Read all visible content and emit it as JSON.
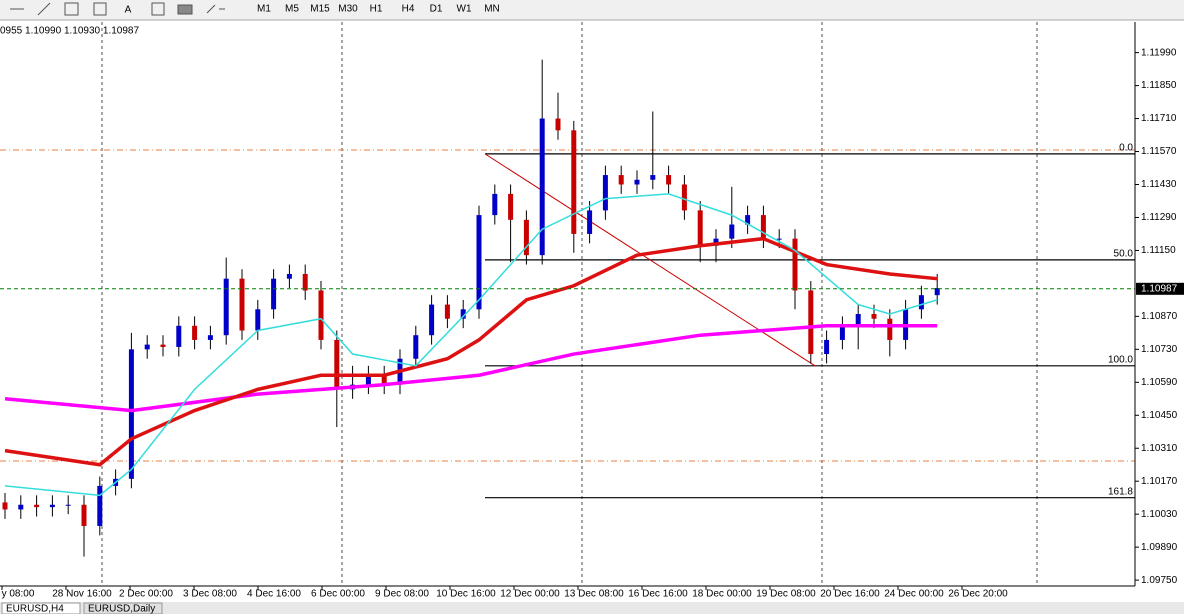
{
  "toolbar": {
    "timeframes": [
      "M1",
      "M5",
      "M15",
      "M30",
      "H1",
      "H4",
      "D1",
      "W1",
      "MN"
    ]
  },
  "chart": {
    "info": "0955 1.10990 1.10930 1.10987",
    "ylim": [
      1.09725,
      1.1212
    ],
    "price_ticks": [
      {
        "value": 1.1199,
        "label": "1.11990"
      },
      {
        "value": 1.1185,
        "label": "1.11850"
      },
      {
        "value": 1.1171,
        "label": "1.11710"
      },
      {
        "value": 1.1157,
        "label": "1.11570"
      },
      {
        "value": 1.1143,
        "label": "1.11430"
      },
      {
        "value": 1.1129,
        "label": "1.11290"
      },
      {
        "value": 1.1115,
        "label": "1.11150"
      },
      {
        "value": 1.1087,
        "label": "1.10870"
      },
      {
        "value": 1.1073,
        "label": "1.10730"
      },
      {
        "value": 1.1059,
        "label": "1.10590"
      },
      {
        "value": 1.1045,
        "label": "1.10450"
      },
      {
        "value": 1.1031,
        "label": "1.10310"
      },
      {
        "value": 1.1017,
        "label": "1.10170"
      },
      {
        "value": 1.1003,
        "label": "1.10030"
      },
      {
        "value": 1.0989,
        "label": "1.09890"
      },
      {
        "value": 1.0975,
        "label": "1.09750"
      }
    ],
    "time_labels": [
      "y 08:00",
      "28 Nov 16:00",
      "2 Dec 00:00",
      "3 Dec 08:00",
      "4 Dec 16:00",
      "6 Dec 00:00",
      "9 Dec 08:00",
      "10 Dec 16:00",
      "12 Dec 00:00",
      "13 Dec 08:00",
      "16 Dec 16:00",
      "18 Dec 00:00",
      "19 Dec 08:00",
      "20 Dec 16:00",
      "24 Dec 00:00",
      "26 Dec 20:00"
    ],
    "candles": {
      "open": [
        1.1008,
        1.1005,
        1.1007,
        1.1006,
        1.1007,
        1.1007,
        1.0998,
        1.1015,
        1.1018,
        1.1073,
        1.1075,
        1.1074,
        1.1083,
        1.1077,
        1.1079,
        1.1103,
        1.1081,
        1.109,
        1.1103,
        1.1105,
        1.1098,
        1.1077,
        1.1056,
        1.1058,
        1.1062,
        1.1058,
        1.1069,
        1.1079,
        1.1092,
        1.1086,
        1.109,
        1.113,
        1.1139,
        1.1128,
        1.1113,
        1.1171,
        1.1166,
        1.1122,
        1.1132,
        1.1147,
        1.1143,
        1.1145,
        1.1147,
        1.1143,
        1.1132,
        1.1117,
        1.112,
        1.1126,
        1.113,
        1.112,
        1.112,
        1.1098,
        1.1071,
        1.1077,
        1.1083,
        1.1088,
        1.1086,
        1.1077,
        1.109,
        1.1096
      ],
      "high": [
        1.1012,
        1.1011,
        1.1011,
        1.1011,
        1.1011,
        1.1011,
        1.1019,
        1.1022,
        1.108,
        1.1079,
        1.1079,
        1.1087,
        1.1087,
        1.1083,
        1.1112,
        1.1107,
        1.1094,
        1.1107,
        1.1109,
        1.1109,
        1.1102,
        1.1081,
        1.1066,
        1.1066,
        1.1066,
        1.1073,
        1.1083,
        1.1096,
        1.1096,
        1.1094,
        1.1134,
        1.1143,
        1.1143,
        1.1132,
        1.1196,
        1.1182,
        1.117,
        1.1136,
        1.1151,
        1.1151,
        1.1149,
        1.1174,
        1.1151,
        1.1147,
        1.1136,
        1.1124,
        1.1142,
        1.1134,
        1.1134,
        1.1124,
        1.1124,
        1.1102,
        1.1081,
        1.1087,
        1.1092,
        1.1092,
        1.109,
        1.1094,
        1.11,
        1.1105
      ],
      "low": [
        1.1001,
        1.1001,
        1.1002,
        1.1002,
        1.1003,
        1.0985,
        1.0994,
        1.1011,
        1.1014,
        1.1069,
        1.107,
        1.107,
        1.1073,
        1.1073,
        1.1075,
        1.1077,
        1.1077,
        1.1086,
        1.1099,
        1.1094,
        1.1073,
        1.104,
        1.1052,
        1.1054,
        1.1054,
        1.1054,
        1.1065,
        1.1075,
        1.1082,
        1.1082,
        1.1086,
        1.1126,
        1.111,
        1.1109,
        1.1109,
        1.1162,
        1.1114,
        1.1118,
        1.1128,
        1.1139,
        1.1139,
        1.1141,
        1.1139,
        1.1128,
        1.111,
        1.111,
        1.1116,
        1.1122,
        1.1116,
        1.1116,
        1.109,
        1.1067,
        1.1067,
        1.1073,
        1.1073,
        1.1082,
        1.107,
        1.1073,
        1.1086,
        1.1092
      ],
      "close": [
        1.1005,
        1.1007,
        1.1006,
        1.1007,
        1.1007,
        1.0998,
        1.1015,
        1.1018,
        1.1073,
        1.1075,
        1.1074,
        1.1083,
        1.1077,
        1.1079,
        1.1103,
        1.1081,
        1.109,
        1.1103,
        1.1105,
        1.1098,
        1.1077,
        1.1056,
        1.1058,
        1.1062,
        1.1058,
        1.1069,
        1.1079,
        1.1092,
        1.1086,
        1.109,
        1.113,
        1.1139,
        1.1128,
        1.1113,
        1.1171,
        1.1166,
        1.1122,
        1.1132,
        1.1147,
        1.1143,
        1.1145,
        1.1147,
        1.1143,
        1.1132,
        1.1117,
        1.112,
        1.1126,
        1.113,
        1.112,
        1.112,
        1.1098,
        1.1071,
        1.1077,
        1.1083,
        1.1088,
        1.1086,
        1.1077,
        1.109,
        1.1096,
        1.1099
      ],
      "bull_color": "#0000c8",
      "bear_color": "#c80000"
    },
    "indicators": [
      {
        "color": "#ff00ff",
        "x": [
          0,
          8,
          16,
          24,
          30,
          36,
          44,
          52,
          59
        ],
        "values": [
          1.1052,
          1.1047,
          1.1054,
          1.1058,
          1.1062,
          1.1071,
          1.1079,
          1.1083,
          1.1083
        ]
      },
      {
        "color": "#dd1111",
        "x": [
          0,
          6,
          8,
          12,
          16,
          20,
          24,
          28,
          30,
          33,
          36,
          40,
          44,
          48,
          52,
          56,
          59
        ],
        "values": [
          1.103,
          1.1024,
          1.1035,
          1.1047,
          1.1056,
          1.1062,
          1.1062,
          1.1069,
          1.1077,
          1.1094,
          1.11,
          1.1113,
          1.1117,
          1.112,
          1.1109,
          1.1105,
          1.1103
        ]
      },
      {
        "color": "#33dddd",
        "x": [
          0,
          6,
          8,
          12,
          16,
          20,
          22,
          26,
          30,
          34,
          38,
          42,
          46,
          50,
          54,
          56,
          59
        ],
        "values": [
          1.1015,
          1.1011,
          1.1022,
          1.1056,
          1.1081,
          1.1086,
          1.1071,
          1.1066,
          1.1094,
          1.1124,
          1.1137,
          1.1139,
          1.113,
          1.1115,
          1.1092,
          1.1088,
          1.1094
        ]
      }
    ],
    "fib_levels": [
      {
        "value": 1.1156,
        "label": "0.0"
      },
      {
        "value": 1.1111,
        "label": "50.0"
      },
      {
        "value": 1.1066,
        "label": "100.0"
      },
      {
        "value": 1.101,
        "label": "161.8"
      }
    ],
    "current_price": {
      "value": 1.10987,
      "label": "1.10987"
    }
  },
  "tabs": [
    "EURUSD,H4",
    "EURUSD,Daily"
  ]
}
